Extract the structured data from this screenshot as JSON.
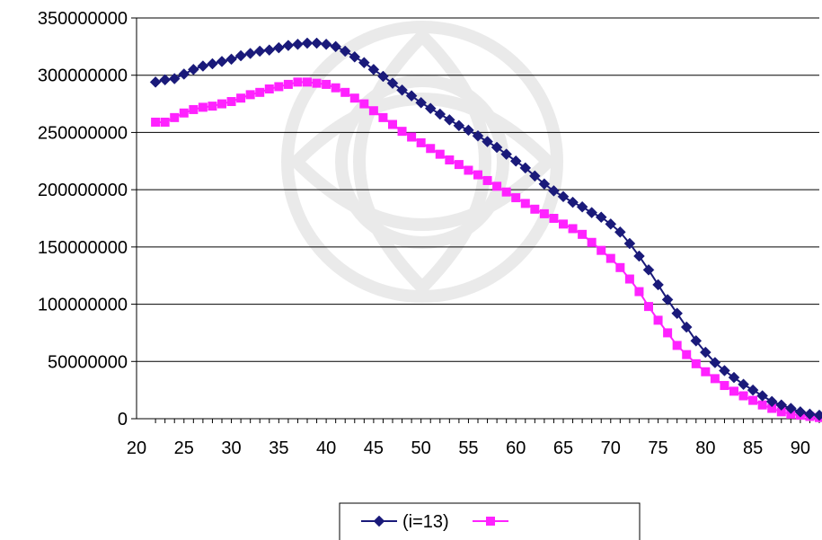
{
  "chart_data": {
    "type": "line",
    "title": "",
    "xlabel": "",
    "ylabel": "",
    "xlim": [
      20,
      92
    ],
    "ylim": [
      0,
      350000000
    ],
    "x_ticks": [
      "20",
      "25",
      "30",
      "35",
      "40",
      "45",
      "50",
      "55",
      "60",
      "65",
      "70",
      "75",
      "80",
      "85",
      "90"
    ],
    "y_ticks": [
      "0",
      "50000000",
      "100000000",
      "150000000",
      "200000000",
      "250000000",
      "300000000",
      "350000000"
    ],
    "grid": "horizontal",
    "legend": "bottom-center",
    "x": [
      22,
      23,
      24,
      25,
      26,
      27,
      28,
      29,
      30,
      31,
      32,
      33,
      34,
      35,
      36,
      37,
      38,
      39,
      40,
      41,
      42,
      43,
      44,
      45,
      46,
      47,
      48,
      49,
      50,
      51,
      52,
      53,
      54,
      55,
      56,
      57,
      58,
      59,
      60,
      61,
      62,
      63,
      64,
      65,
      66,
      67,
      68,
      69,
      70,
      71,
      72,
      73,
      74,
      75,
      76,
      77,
      78,
      79,
      80,
      81,
      82,
      83,
      84,
      85,
      86,
      87,
      88,
      89,
      90,
      91,
      92
    ],
    "series": [
      {
        "name": "(i=13)",
        "marker": "diamond",
        "color": "#1a1a7a",
        "values": [
          294000000,
          296000000,
          297000000,
          301000000,
          305000000,
          308000000,
          310000000,
          312000000,
          314000000,
          317000000,
          319000000,
          321000000,
          322000000,
          324000000,
          326000000,
          327000000,
          328000000,
          328000000,
          327000000,
          325000000,
          321000000,
          316000000,
          311000000,
          305000000,
          299000000,
          293000000,
          287000000,
          282000000,
          276000000,
          271000000,
          266000000,
          261000000,
          256000000,
          252000000,
          247000000,
          242000000,
          237000000,
          231000000,
          225000000,
          219000000,
          212000000,
          205000000,
          199000000,
          194000000,
          189000000,
          185000000,
          180000000,
          176000000,
          170000000,
          163000000,
          153000000,
          142000000,
          130000000,
          117000000,
          104000000,
          92000000,
          80000000,
          68000000,
          58000000,
          49000000,
          42000000,
          36000000,
          30000000,
          25000000,
          20000000,
          15000000,
          12000000,
          9000000,
          6000000,
          4000000,
          3000000
        ]
      },
      {
        "name": "",
        "marker": "square",
        "color": "#ff22ff",
        "values": [
          259000000,
          259000000,
          263000000,
          267000000,
          270000000,
          272000000,
          273000000,
          275000000,
          277000000,
          280000000,
          283000000,
          285000000,
          288000000,
          290000000,
          292000000,
          294000000,
          294000000,
          293000000,
          292000000,
          289000000,
          285000000,
          280000000,
          275000000,
          269000000,
          263000000,
          257000000,
          251000000,
          246000000,
          241000000,
          236000000,
          231000000,
          226000000,
          222000000,
          217000000,
          213000000,
          208000000,
          203000000,
          198000000,
          193000000,
          188000000,
          183000000,
          179000000,
          175000000,
          170000000,
          166000000,
          161000000,
          154000000,
          147000000,
          140000000,
          132000000,
          122000000,
          111000000,
          98000000,
          86000000,
          75000000,
          64000000,
          56000000,
          48000000,
          41000000,
          35000000,
          29000000,
          24000000,
          20000000,
          16000000,
          12000000,
          9000000,
          6000000,
          4000000,
          3000000,
          2000000,
          1000000
        ]
      }
    ]
  }
}
